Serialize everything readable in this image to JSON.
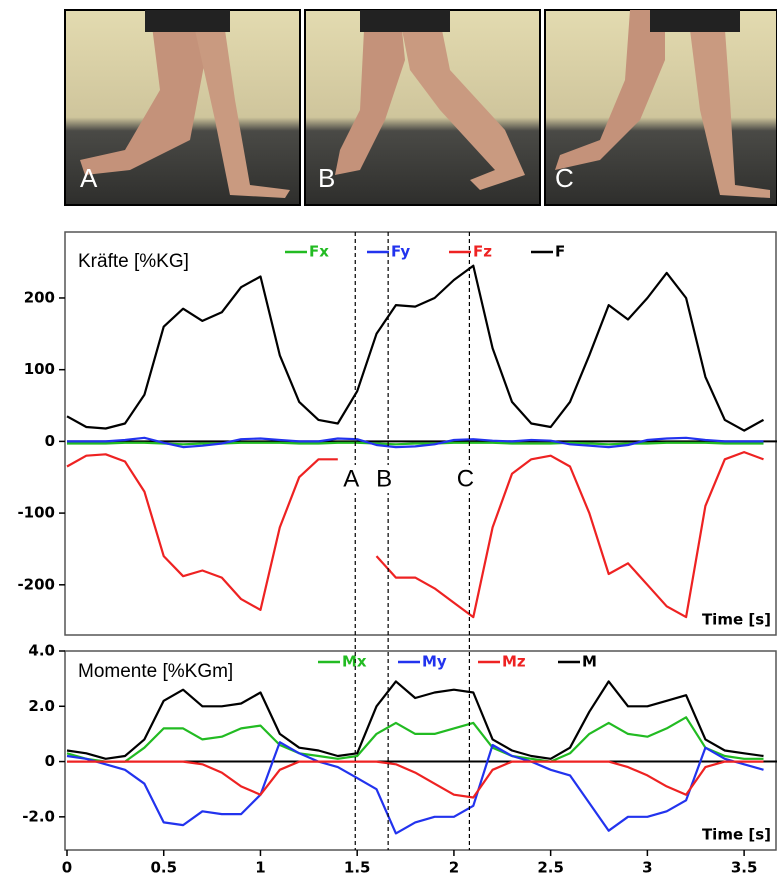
{
  "photos": [
    {
      "label": "A"
    },
    {
      "label": "B"
    },
    {
      "label": "C"
    }
  ],
  "chart_data": [
    {
      "type": "line",
      "title": "Kräfte [%KG]",
      "x_label": "Time [s]",
      "x": [
        0,
        0.1,
        0.2,
        0.3,
        0.4,
        0.5,
        0.6,
        0.7,
        0.8,
        0.9,
        1.0,
        1.1,
        1.2,
        1.3,
        1.4,
        1.5,
        1.6,
        1.7,
        1.8,
        1.9,
        2.0,
        2.1,
        2.2,
        2.3,
        2.4,
        2.5,
        2.6,
        2.7,
        2.8,
        2.9,
        3.0,
        3.1,
        3.2,
        3.3,
        3.4,
        3.5,
        3.6
      ],
      "xlim": [
        0,
        3.67
      ],
      "ylim": [
        -270,
        292
      ],
      "yticks": [
        200,
        100,
        0,
        -100,
        -200
      ],
      "markers": [
        {
          "label": "A",
          "x": 1.49
        },
        {
          "label": "B",
          "x": 1.66
        },
        {
          "label": "C",
          "x": 2.08
        }
      ],
      "series": [
        {
          "name": "Fx",
          "color": "#22bb22",
          "values": [
            -3,
            -3,
            -3,
            -2,
            -2,
            -3,
            -4,
            -3,
            -3,
            -2,
            -2,
            -2,
            -3,
            -3,
            -2,
            -2,
            -3,
            -4,
            -3,
            -3,
            -2,
            -2,
            -2,
            -3,
            -3,
            -3,
            -2,
            -3,
            -4,
            -3,
            -3,
            -2,
            -2,
            -2,
            -3,
            -3,
            -3
          ]
        },
        {
          "name": "Fy",
          "color": "#2233ee",
          "values": [
            0,
            0,
            0,
            2,
            5,
            -2,
            -8,
            -6,
            -3,
            3,
            4,
            2,
            0,
            0,
            4,
            3,
            -5,
            -8,
            -7,
            -4,
            2,
            3,
            1,
            0,
            2,
            1,
            -4,
            -6,
            -8,
            -5,
            2,
            4,
            5,
            2,
            0,
            0,
            0
          ]
        },
        {
          "name": "Fz",
          "color": "#ee2222",
          "values": [
            -35,
            -20,
            -18,
            -28,
            -70,
            -160,
            -188,
            -180,
            -190,
            -220,
            -235,
            -120,
            -50,
            -25,
            -25,
            null,
            -160,
            -190,
            -190,
            -205,
            -225,
            -245,
            -120,
            -45,
            -25,
            -20,
            -35,
            -100,
            -185,
            -170,
            -200,
            -230,
            -245,
            -90,
            -25,
            -15,
            -25
          ]
        },
        {
          "name": "F",
          "color": "#000000",
          "values": [
            35,
            20,
            18,
            25,
            65,
            160,
            185,
            168,
            180,
            215,
            230,
            120,
            55,
            30,
            25,
            70,
            150,
            190,
            188,
            200,
            225,
            245,
            130,
            55,
            25,
            20,
            55,
            120,
            190,
            170,
            200,
            235,
            200,
            90,
            30,
            15,
            30
          ]
        }
      ]
    },
    {
      "type": "line",
      "title": "Momente [%KGm]",
      "x_label": "Time [s]",
      "x": [
        0,
        0.1,
        0.2,
        0.3,
        0.4,
        0.5,
        0.6,
        0.7,
        0.8,
        0.9,
        1.0,
        1.1,
        1.2,
        1.3,
        1.4,
        1.5,
        1.6,
        1.7,
        1.8,
        1.9,
        2.0,
        2.1,
        2.2,
        2.3,
        2.4,
        2.5,
        2.6,
        2.7,
        2.8,
        2.9,
        3.0,
        3.1,
        3.2,
        3.3,
        3.4,
        3.5,
        3.6
      ],
      "xlim": [
        0,
        3.67
      ],
      "ylim": [
        -3.2,
        4.0
      ],
      "yticks": [
        {
          "value": 4,
          "label": "4.0"
        },
        {
          "value": 2,
          "label": "2.0"
        },
        0,
        {
          "value": -2,
          "label": "-2.0"
        }
      ],
      "xticks": [
        0,
        0.5,
        1,
        1.5,
        2,
        2.5,
        3,
        3.5
      ],
      "series": [
        {
          "name": "Mx",
          "color": "#22bb22",
          "values": [
            0.3,
            0.1,
            0,
            0,
            0.5,
            1.2,
            1.2,
            0.8,
            0.9,
            1.2,
            1.3,
            0.6,
            0.3,
            0.2,
            0.1,
            0.2,
            1.0,
            1.4,
            1.0,
            1.0,
            1.2,
            1.4,
            0.5,
            0.2,
            0.1,
            0,
            0.3,
            1.0,
            1.4,
            1.0,
            0.9,
            1.2,
            1.6,
            0.5,
            0.2,
            0.1,
            0.1
          ]
        },
        {
          "name": "My",
          "color": "#2233ee",
          "values": [
            0.2,
            0.1,
            -0.1,
            -0.3,
            -0.8,
            -2.2,
            -2.3,
            -1.8,
            -1.9,
            -1.9,
            -1.2,
            0.7,
            0.3,
            0,
            -0.2,
            -0.6,
            -1.0,
            -2.6,
            -2.2,
            -2.0,
            -2.0,
            -1.6,
            0.6,
            0.2,
            0,
            -0.3,
            -0.5,
            -1.5,
            -2.5,
            -2.0,
            -2.0,
            -1.8,
            -1.4,
            0.5,
            0.1,
            -0.1,
            -0.3
          ]
        },
        {
          "name": "Mz",
          "color": "#ee2222",
          "values": [
            0,
            0,
            0,
            0,
            0,
            0,
            0,
            -0.1,
            -0.4,
            -0.9,
            -1.2,
            -0.3,
            0,
            0,
            0,
            0,
            0,
            -0.1,
            -0.4,
            -0.8,
            -1.2,
            -1.3,
            -0.3,
            0,
            0,
            0,
            0,
            0,
            0,
            -0.2,
            -0.5,
            -0.9,
            -1.2,
            -0.2,
            0,
            0,
            0
          ]
        },
        {
          "name": "M",
          "color": "#000000",
          "values": [
            0.4,
            0.3,
            0.1,
            0.2,
            0.8,
            2.2,
            2.6,
            2.0,
            2.0,
            2.1,
            2.5,
            1.0,
            0.5,
            0.4,
            0.2,
            0.3,
            2.0,
            2.9,
            2.3,
            2.5,
            2.6,
            2.5,
            0.8,
            0.4,
            0.2,
            0.1,
            0.5,
            1.8,
            2.9,
            2.0,
            2.0,
            2.2,
            2.4,
            0.8,
            0.4,
            0.3,
            0.2
          ]
        }
      ]
    }
  ]
}
